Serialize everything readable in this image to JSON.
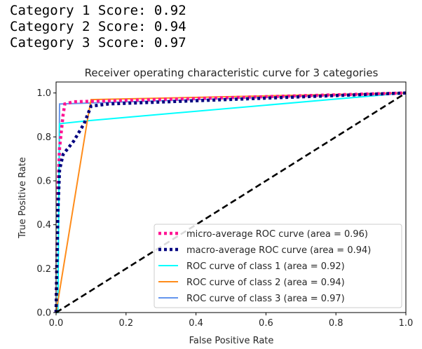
{
  "scores": [
    {
      "label": "Category 1 Score:",
      "value": "0.92"
    },
    {
      "label": "Category 2 Score:",
      "value": "0.94"
    },
    {
      "label": "Category 3 Score:",
      "value": "0.97"
    }
  ],
  "chart_data": {
    "type": "line",
    "title": "Receiver operating characteristic curve for 3 categories",
    "xlabel": "False Positive Rate",
    "ylabel": "True Positive Rate",
    "xlim": [
      0.0,
      1.0
    ],
    "ylim": [
      0.0,
      1.05
    ],
    "xticks": [
      "0.0",
      "0.2",
      "0.4",
      "0.6",
      "0.8",
      "1.0"
    ],
    "yticks": [
      "0.0",
      "0.2",
      "0.4",
      "0.6",
      "0.8",
      "1.0"
    ],
    "grid": false,
    "legend_position": "lower-right",
    "series": [
      {
        "name": "micro-average ROC curve (area = 0.96)",
        "color": "#ff1493",
        "style": "dotted",
        "x": [
          0,
          0.005,
          0.01,
          0.02,
          0.025,
          0.05,
          1.0
        ],
        "y": [
          0,
          0.55,
          0.75,
          0.9,
          0.95,
          0.96,
          1.0
        ]
      },
      {
        "name": "macro-average ROC curve (area = 0.94)",
        "color": "#000080",
        "style": "dotted",
        "x": [
          0,
          0.005,
          0.01,
          0.02,
          0.05,
          0.08,
          0.1,
          0.15,
          1.0
        ],
        "y": [
          0,
          0.45,
          0.65,
          0.72,
          0.78,
          0.86,
          0.94,
          0.95,
          1.0
        ]
      },
      {
        "name": "ROC curve of class 1 (area = 0.92)",
        "color": "#00ffff",
        "style": "solid",
        "x": [
          0,
          0.005,
          0.01,
          0.1,
          1.0
        ],
        "y": [
          0,
          0.0,
          0.86,
          0.875,
          1.0
        ]
      },
      {
        "name": "ROC curve of class 2 (area = 0.94)",
        "color": "#ff8c1a",
        "style": "solid",
        "x": [
          0,
          0.09,
          0.1,
          1.0
        ],
        "y": [
          0,
          0.88,
          0.97,
          1.0
        ]
      },
      {
        "name": "ROC curve of class 3 (area = 0.97)",
        "color": "#6495ed",
        "style": "solid",
        "x": [
          0,
          0.005,
          0.01,
          1.0
        ],
        "y": [
          0,
          0.0,
          0.95,
          1.0
        ]
      }
    ],
    "reference_line": {
      "x": [
        0,
        1
      ],
      "y": [
        0,
        1
      ],
      "color": "#000000",
      "style": "dashed"
    }
  }
}
